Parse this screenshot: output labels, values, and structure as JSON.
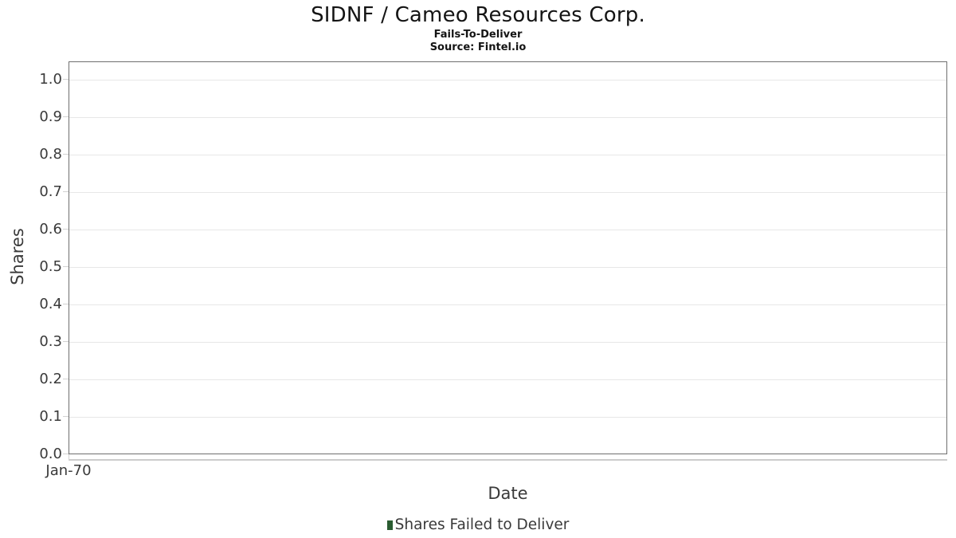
{
  "header": {
    "title": "SIDNF / Cameo Resources Corp.",
    "subtitle": "Fails-To-Deliver",
    "source": "Source: Fintel.io"
  },
  "chart_data": {
    "type": "bar",
    "title": "SIDNF / Cameo Resources Corp.",
    "subtitle": "Fails-To-Deliver",
    "source_note": "Source: Fintel.io",
    "xlabel": "Date",
    "ylabel": "Shares",
    "x_tick_labels": [
      "Jan-70"
    ],
    "y_tick_labels": [
      "1.0",
      "0.9",
      "0.8",
      "0.7",
      "0.6",
      "0.5",
      "0.4",
      "0.3",
      "0.2",
      "0.1",
      "0.0"
    ],
    "ylim": [
      0.0,
      1.05
    ],
    "grid": true,
    "legend_position": "bottom",
    "series": [
      {
        "name": "Shares Failed to Deliver",
        "color": "#2a5c31",
        "x": [],
        "values": []
      }
    ]
  },
  "colors": {
    "background": "#ffffff",
    "title_text": "#141414",
    "axis_text": "#3a3a3a",
    "plot_border": "#6f6f6f",
    "gridline": "#e7e7e7",
    "tick": "#d2d2d2",
    "legend_marker": "#2a5c31"
  }
}
